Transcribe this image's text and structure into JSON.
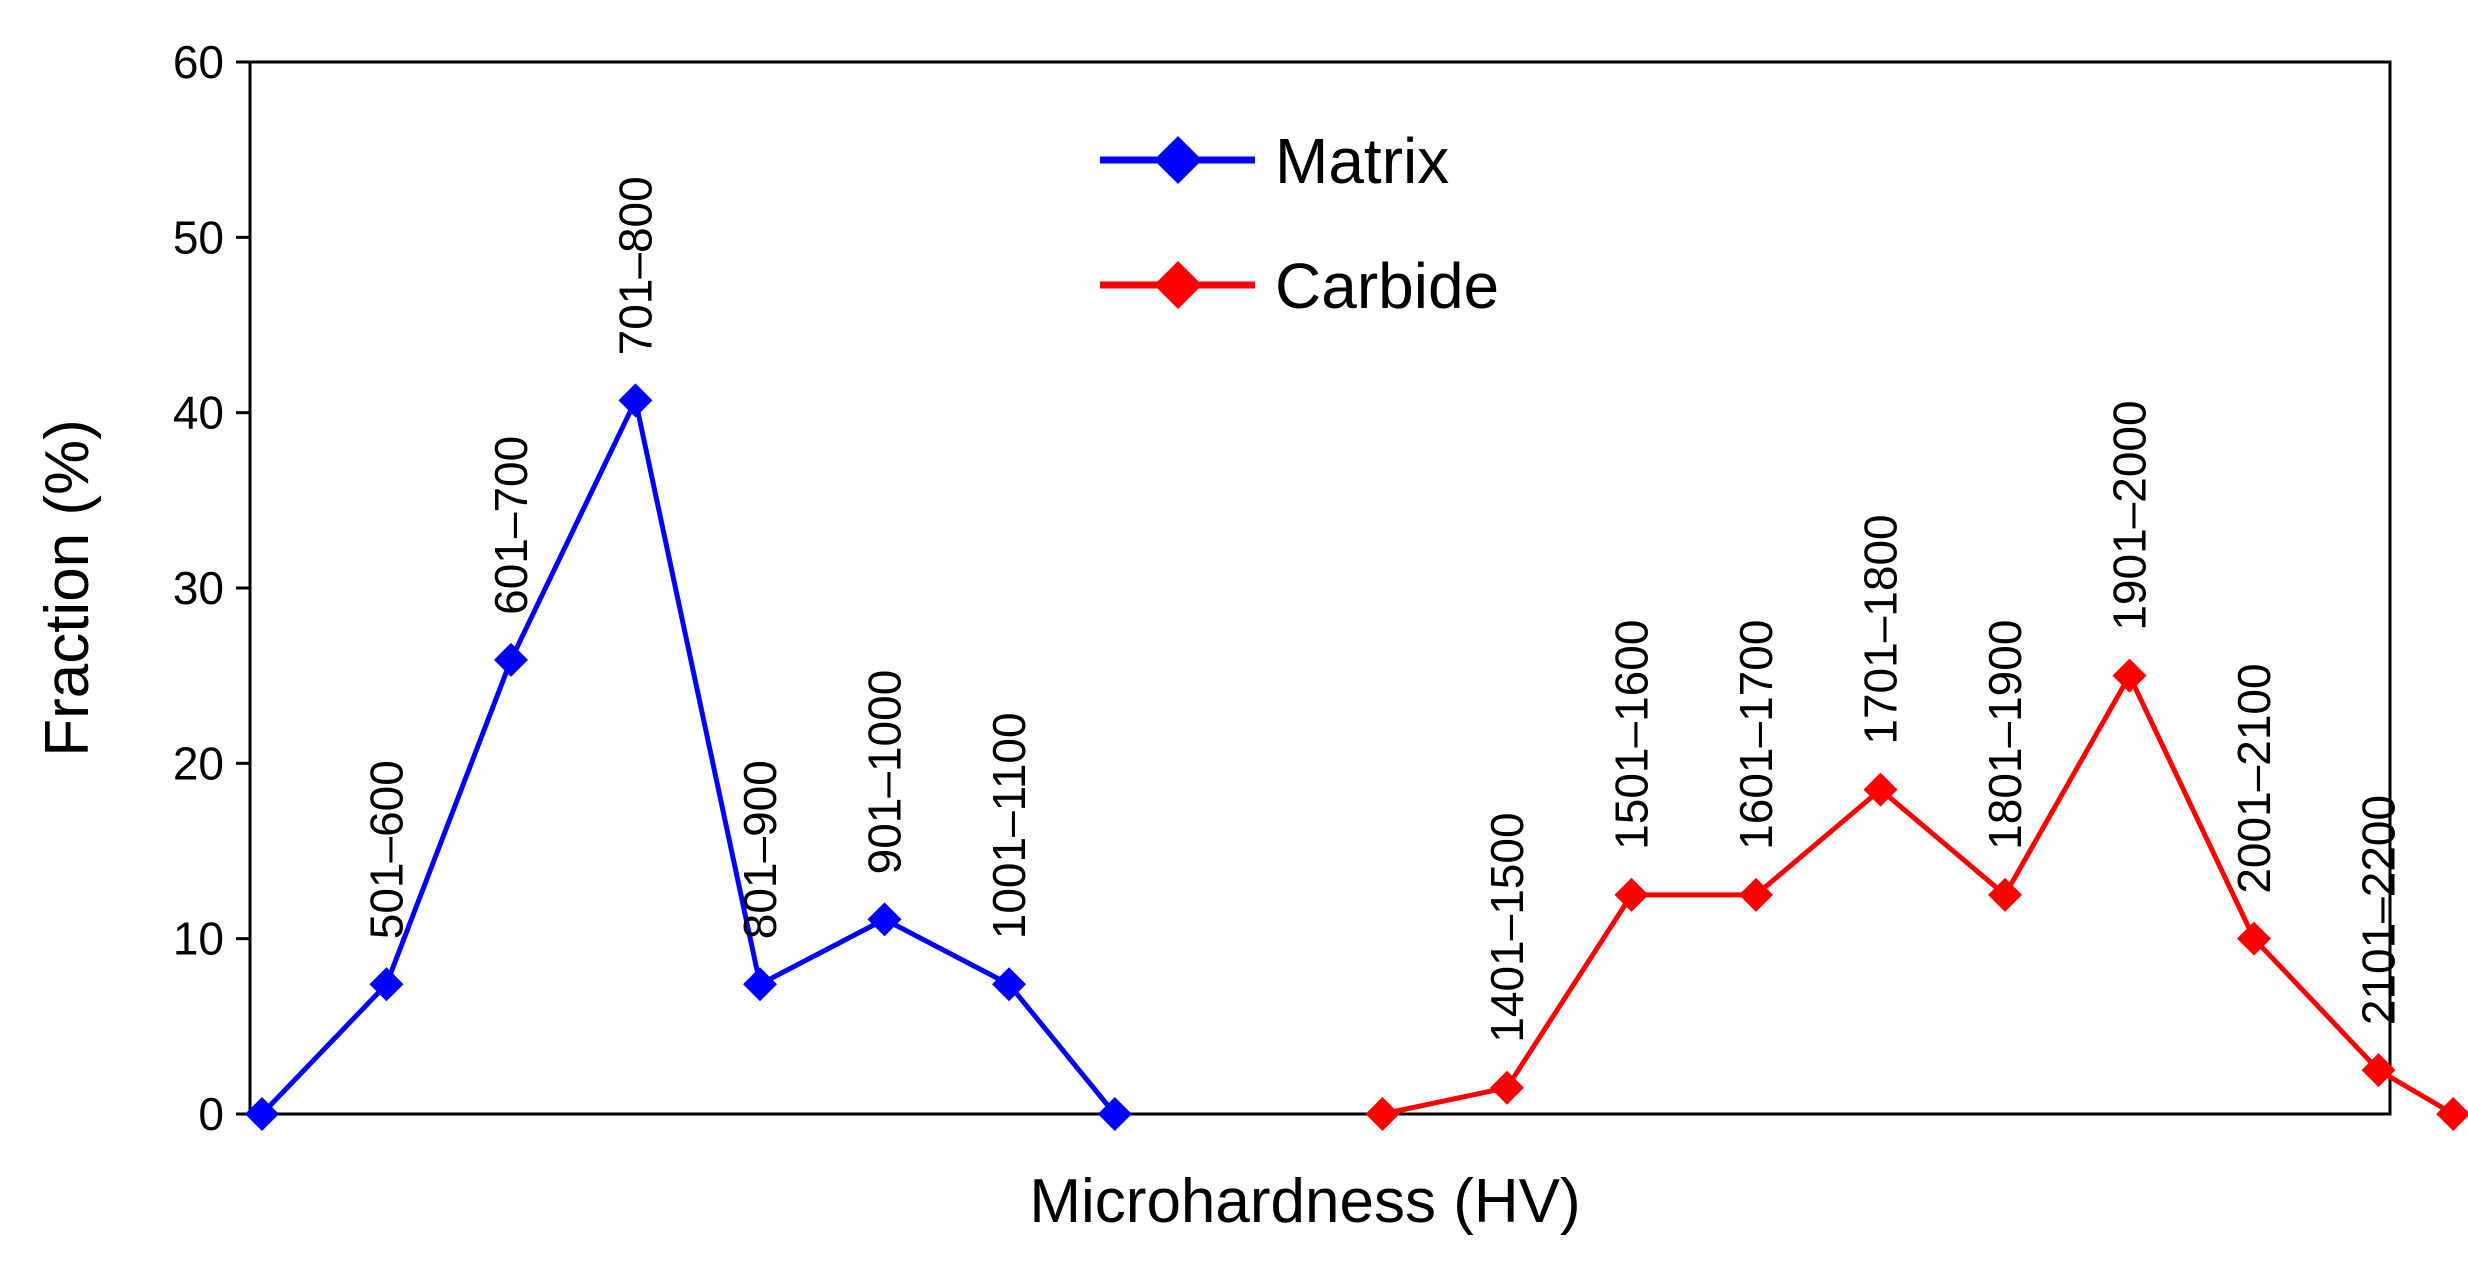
{
  "chart_data": {
    "type": "line",
    "title": "",
    "xlabel": "Microhardness (HV)",
    "ylabel": "Fraction (%)",
    "ylim": [
      0,
      60
    ],
    "yticks": [
      0,
      10,
      20,
      30,
      40,
      50,
      60
    ],
    "xlim": [
      0,
      17
    ],
    "grid": false,
    "legend_position": "top-center",
    "series": [
      {
        "name": "Matrix",
        "color": "#0000ff",
        "x": [
          0,
          1,
          2,
          3,
          4,
          5,
          6,
          7
        ],
        "values": [
          0,
          7.4,
          25.9,
          40.7,
          7.4,
          11.1,
          7.4,
          0
        ],
        "labels": [
          "",
          "501–600",
          "601–700",
          "701–800",
          "801–900",
          "901–1000",
          "1001–1100",
          ""
        ]
      },
      {
        "name": "Carbide",
        "color": "#ff0000",
        "x": [
          9,
          10,
          11,
          12,
          13,
          14,
          15,
          16,
          17
        ],
        "values": [
          0,
          1.5,
          12.5,
          12.5,
          18.5,
          12.5,
          25,
          10,
          2.5
        ],
        "labels": [
          "",
          "1401–1500",
          "1501–1600",
          "1601–1700",
          "1701–1800",
          "1801–1900",
          "1901–2000",
          "2001–2100",
          "2101–2200"
        ]
      }
    ],
    "carbide_end": {
      "x": 17,
      "value": 0
    }
  }
}
